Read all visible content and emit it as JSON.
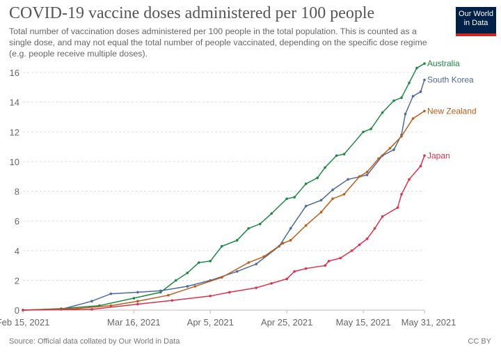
{
  "header": {
    "title": "COVID-19 vaccine doses administered per 100 people",
    "subtitle": "Total number of vaccination doses administered per 100 people in the total population. This is counted as a single dose, and may not equal the total number of people vaccinated, depending on the specific dose regime (e.g. people receive multiple doses).",
    "logo": "Our World in Data"
  },
  "footer": {
    "source": "Source: Official data collated by Our World in Data",
    "license": "CC BY"
  },
  "chart_data": {
    "type": "line",
    "title": "COVID-19 vaccine doses administered per 100 people",
    "xlabel": "",
    "ylabel": "",
    "x_unit": "days since Feb 15, 2021",
    "xlim": [
      0,
      105
    ],
    "ylim": [
      0,
      16
    ],
    "yticks": [
      0,
      2,
      4,
      6,
      8,
      10,
      12,
      14,
      16
    ],
    "xticks": [
      {
        "x": 0,
        "label": "Feb 15, 2021"
      },
      {
        "x": 29,
        "label": "Mar 16, 2021"
      },
      {
        "x": 49,
        "label": "Apr 5, 2021"
      },
      {
        "x": 69,
        "label": "Apr 25, 2021"
      },
      {
        "x": 89,
        "label": "May 15, 2021"
      },
      {
        "x": 105,
        "label": "May 31, 2021"
      }
    ],
    "grid": true,
    "legend": "right-end labels",
    "series": [
      {
        "name": "Australia",
        "color": "#1a8a44",
        "points": [
          [
            0,
            0
          ],
          [
            10,
            0.1
          ],
          [
            20,
            0.3
          ],
          [
            29,
            0.8
          ],
          [
            36,
            1.2
          ],
          [
            40,
            2.0
          ],
          [
            43,
            2.5
          ],
          [
            46,
            3.2
          ],
          [
            49,
            3.3
          ],
          [
            52,
            4.3
          ],
          [
            56,
            4.7
          ],
          [
            59,
            5.5
          ],
          [
            62,
            5.8
          ],
          [
            65,
            6.5
          ],
          [
            69,
            7.5
          ],
          [
            71,
            7.6
          ],
          [
            74,
            8.5
          ],
          [
            77,
            8.9
          ],
          [
            79,
            9.6
          ],
          [
            82,
            10.4
          ],
          [
            84,
            10.5
          ],
          [
            89,
            12.0
          ],
          [
            91,
            12.2
          ],
          [
            94,
            13.3
          ],
          [
            97,
            14.1
          ],
          [
            99,
            14.3
          ],
          [
            101,
            15.3
          ],
          [
            103,
            16.3
          ],
          [
            105,
            16.6
          ]
        ]
      },
      {
        "name": "South Korea",
        "color": "#4c6a9c",
        "points": [
          [
            0,
            0
          ],
          [
            10,
            0.05
          ],
          [
            18,
            0.6
          ],
          [
            23,
            1.1
          ],
          [
            30,
            1.2
          ],
          [
            36,
            1.3
          ],
          [
            43,
            1.6
          ],
          [
            49,
            2.0
          ],
          [
            56,
            2.6
          ],
          [
            61,
            3.1
          ],
          [
            67,
            4.3
          ],
          [
            70,
            5.5
          ],
          [
            74,
            7.0
          ],
          [
            78,
            7.4
          ],
          [
            81,
            8.1
          ],
          [
            85,
            8.8
          ],
          [
            90,
            9.1
          ],
          [
            94,
            10.4
          ],
          [
            97,
            10.8
          ],
          [
            99,
            11.8
          ],
          [
            100,
            13.2
          ],
          [
            102,
            14.4
          ],
          [
            104,
            14.7
          ],
          [
            105,
            15.5
          ]
        ]
      },
      {
        "name": "New Zealand",
        "color": "#c15c17",
        "points": [
          [
            0,
            0
          ],
          [
            14,
            0.1
          ],
          [
            23,
            0.3
          ],
          [
            30,
            0.6
          ],
          [
            38,
            1.0
          ],
          [
            45,
            1.6
          ],
          [
            52,
            2.2
          ],
          [
            59,
            3.2
          ],
          [
            63,
            3.6
          ],
          [
            68,
            4.5
          ],
          [
            70,
            4.7
          ],
          [
            74,
            5.7
          ],
          [
            78,
            6.6
          ],
          [
            81,
            7.5
          ],
          [
            84,
            7.8
          ],
          [
            88,
            9.0
          ],
          [
            90,
            9.3
          ],
          [
            93,
            10.2
          ],
          [
            96,
            10.9
          ],
          [
            99,
            11.7
          ],
          [
            102,
            12.9
          ],
          [
            105,
            13.4
          ]
        ]
      },
      {
        "name": "Japan",
        "color": "#e0304a",
        "points": [
          [
            0,
            0
          ],
          [
            18,
            0.05
          ],
          [
            30,
            0.4
          ],
          [
            39,
            0.65
          ],
          [
            49,
            0.95
          ],
          [
            54,
            1.2
          ],
          [
            61,
            1.5
          ],
          [
            65,
            1.8
          ],
          [
            69,
            2.1
          ],
          [
            71,
            2.6
          ],
          [
            74,
            2.8
          ],
          [
            79,
            3.0
          ],
          [
            80,
            3.3
          ],
          [
            83,
            3.5
          ],
          [
            86,
            4.0
          ],
          [
            88,
            4.4
          ],
          [
            90,
            4.8
          ],
          [
            92,
            5.5
          ],
          [
            94,
            6.3
          ],
          [
            98,
            6.9
          ],
          [
            99,
            7.8
          ],
          [
            101,
            8.8
          ],
          [
            104,
            9.7
          ],
          [
            105,
            10.4
          ]
        ]
      }
    ]
  }
}
